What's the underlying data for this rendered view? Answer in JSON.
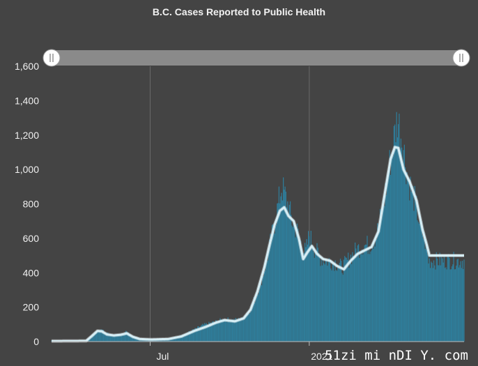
{
  "chart_data": {
    "type": "bar",
    "title": "B.C. Cases Reported to Public Health",
    "xlabel": "",
    "ylabel": "",
    "ylim": [
      0,
      1600
    ],
    "y_ticks": [
      0,
      200,
      400,
      600,
      800,
      1000,
      1200,
      1400,
      1600
    ],
    "y_tick_labels": [
      "0",
      "200",
      "400",
      "600",
      "800",
      "1,000",
      "1,200",
      "1,400",
      "1,600"
    ],
    "x_tick_labels": [
      "Jul",
      "2021"
    ],
    "x_tick_days": [
      114,
      298
    ],
    "day_count": 478,
    "daily_cases_keypoints": [
      [
        0,
        5
      ],
      [
        40,
        5
      ],
      [
        45,
        25
      ],
      [
        52,
        60
      ],
      [
        56,
        75
      ],
      [
        62,
        55
      ],
      [
        70,
        40
      ],
      [
        80,
        40
      ],
      [
        86,
        60
      ],
      [
        92,
        35
      ],
      [
        100,
        18
      ],
      [
        112,
        12
      ],
      [
        135,
        18
      ],
      [
        150,
        35
      ],
      [
        165,
        70
      ],
      [
        175,
        95
      ],
      [
        190,
        115
      ],
      [
        200,
        130
      ],
      [
        210,
        125
      ],
      [
        220,
        130
      ],
      [
        228,
        170
      ],
      [
        236,
        260
      ],
      [
        244,
        380
      ],
      [
        250,
        500
      ],
      [
        256,
        640
      ],
      [
        262,
        790
      ],
      [
        266,
        900
      ],
      [
        272,
        820
      ],
      [
        278,
        700
      ],
      [
        284,
        640
      ],
      [
        290,
        540
      ],
      [
        294,
        520
      ],
      [
        298,
        620
      ],
      [
        304,
        540
      ],
      [
        312,
        480
      ],
      [
        320,
        470
      ],
      [
        328,
        460
      ],
      [
        336,
        430
      ],
      [
        344,
        480
      ],
      [
        352,
        530
      ],
      [
        360,
        560
      ],
      [
        368,
        560
      ],
      [
        376,
        620
      ],
      [
        384,
        800
      ],
      [
        390,
        1000
      ],
      [
        396,
        1180
      ],
      [
        400,
        1300
      ],
      [
        406,
        1160
      ],
      [
        412,
        950
      ],
      [
        420,
        820
      ],
      [
        426,
        680
      ],
      [
        432,
        580
      ],
      [
        436,
        470
      ]
    ],
    "avg_keypoints": [
      [
        0,
        3
      ],
      [
        40,
        4
      ],
      [
        46,
        30
      ],
      [
        53,
        62
      ],
      [
        58,
        60
      ],
      [
        64,
        42
      ],
      [
        72,
        36
      ],
      [
        80,
        40
      ],
      [
        87,
        48
      ],
      [
        94,
        28
      ],
      [
        102,
        15
      ],
      [
        115,
        12
      ],
      [
        135,
        15
      ],
      [
        150,
        30
      ],
      [
        165,
        62
      ],
      [
        178,
        85
      ],
      [
        190,
        110
      ],
      [
        200,
        125
      ],
      [
        212,
        118
      ],
      [
        222,
        135
      ],
      [
        230,
        185
      ],
      [
        238,
        290
      ],
      [
        246,
        430
      ],
      [
        252,
        560
      ],
      [
        258,
        680
      ],
      [
        264,
        760
      ],
      [
        269,
        780
      ],
      [
        274,
        730
      ],
      [
        280,
        700
      ],
      [
        286,
        600
      ],
      [
        291,
        480
      ],
      [
        296,
        520
      ],
      [
        301,
        555
      ],
      [
        307,
        510
      ],
      [
        314,
        480
      ],
      [
        322,
        470
      ],
      [
        330,
        440
      ],
      [
        338,
        420
      ],
      [
        346,
        470
      ],
      [
        354,
        510
      ],
      [
        362,
        530
      ],
      [
        370,
        550
      ],
      [
        378,
        640
      ],
      [
        386,
        880
      ],
      [
        392,
        1060
      ],
      [
        397,
        1130
      ],
      [
        401,
        1125
      ],
      [
        407,
        1000
      ],
      [
        414,
        930
      ],
      [
        422,
        820
      ],
      [
        429,
        650
      ],
      [
        434,
        560
      ],
      [
        437,
        500
      ]
    ],
    "range_selector": {
      "start": 0,
      "end": 1
    },
    "colors": {
      "background": "#444444",
      "bars": "#2f7d9a",
      "average_line": "#d6eef5",
      "gridline": "#6a6a6a",
      "slider": "#8a8a8a",
      "handle": "#ffffff"
    }
  },
  "watermark": "51zi mi nDI Y. com"
}
